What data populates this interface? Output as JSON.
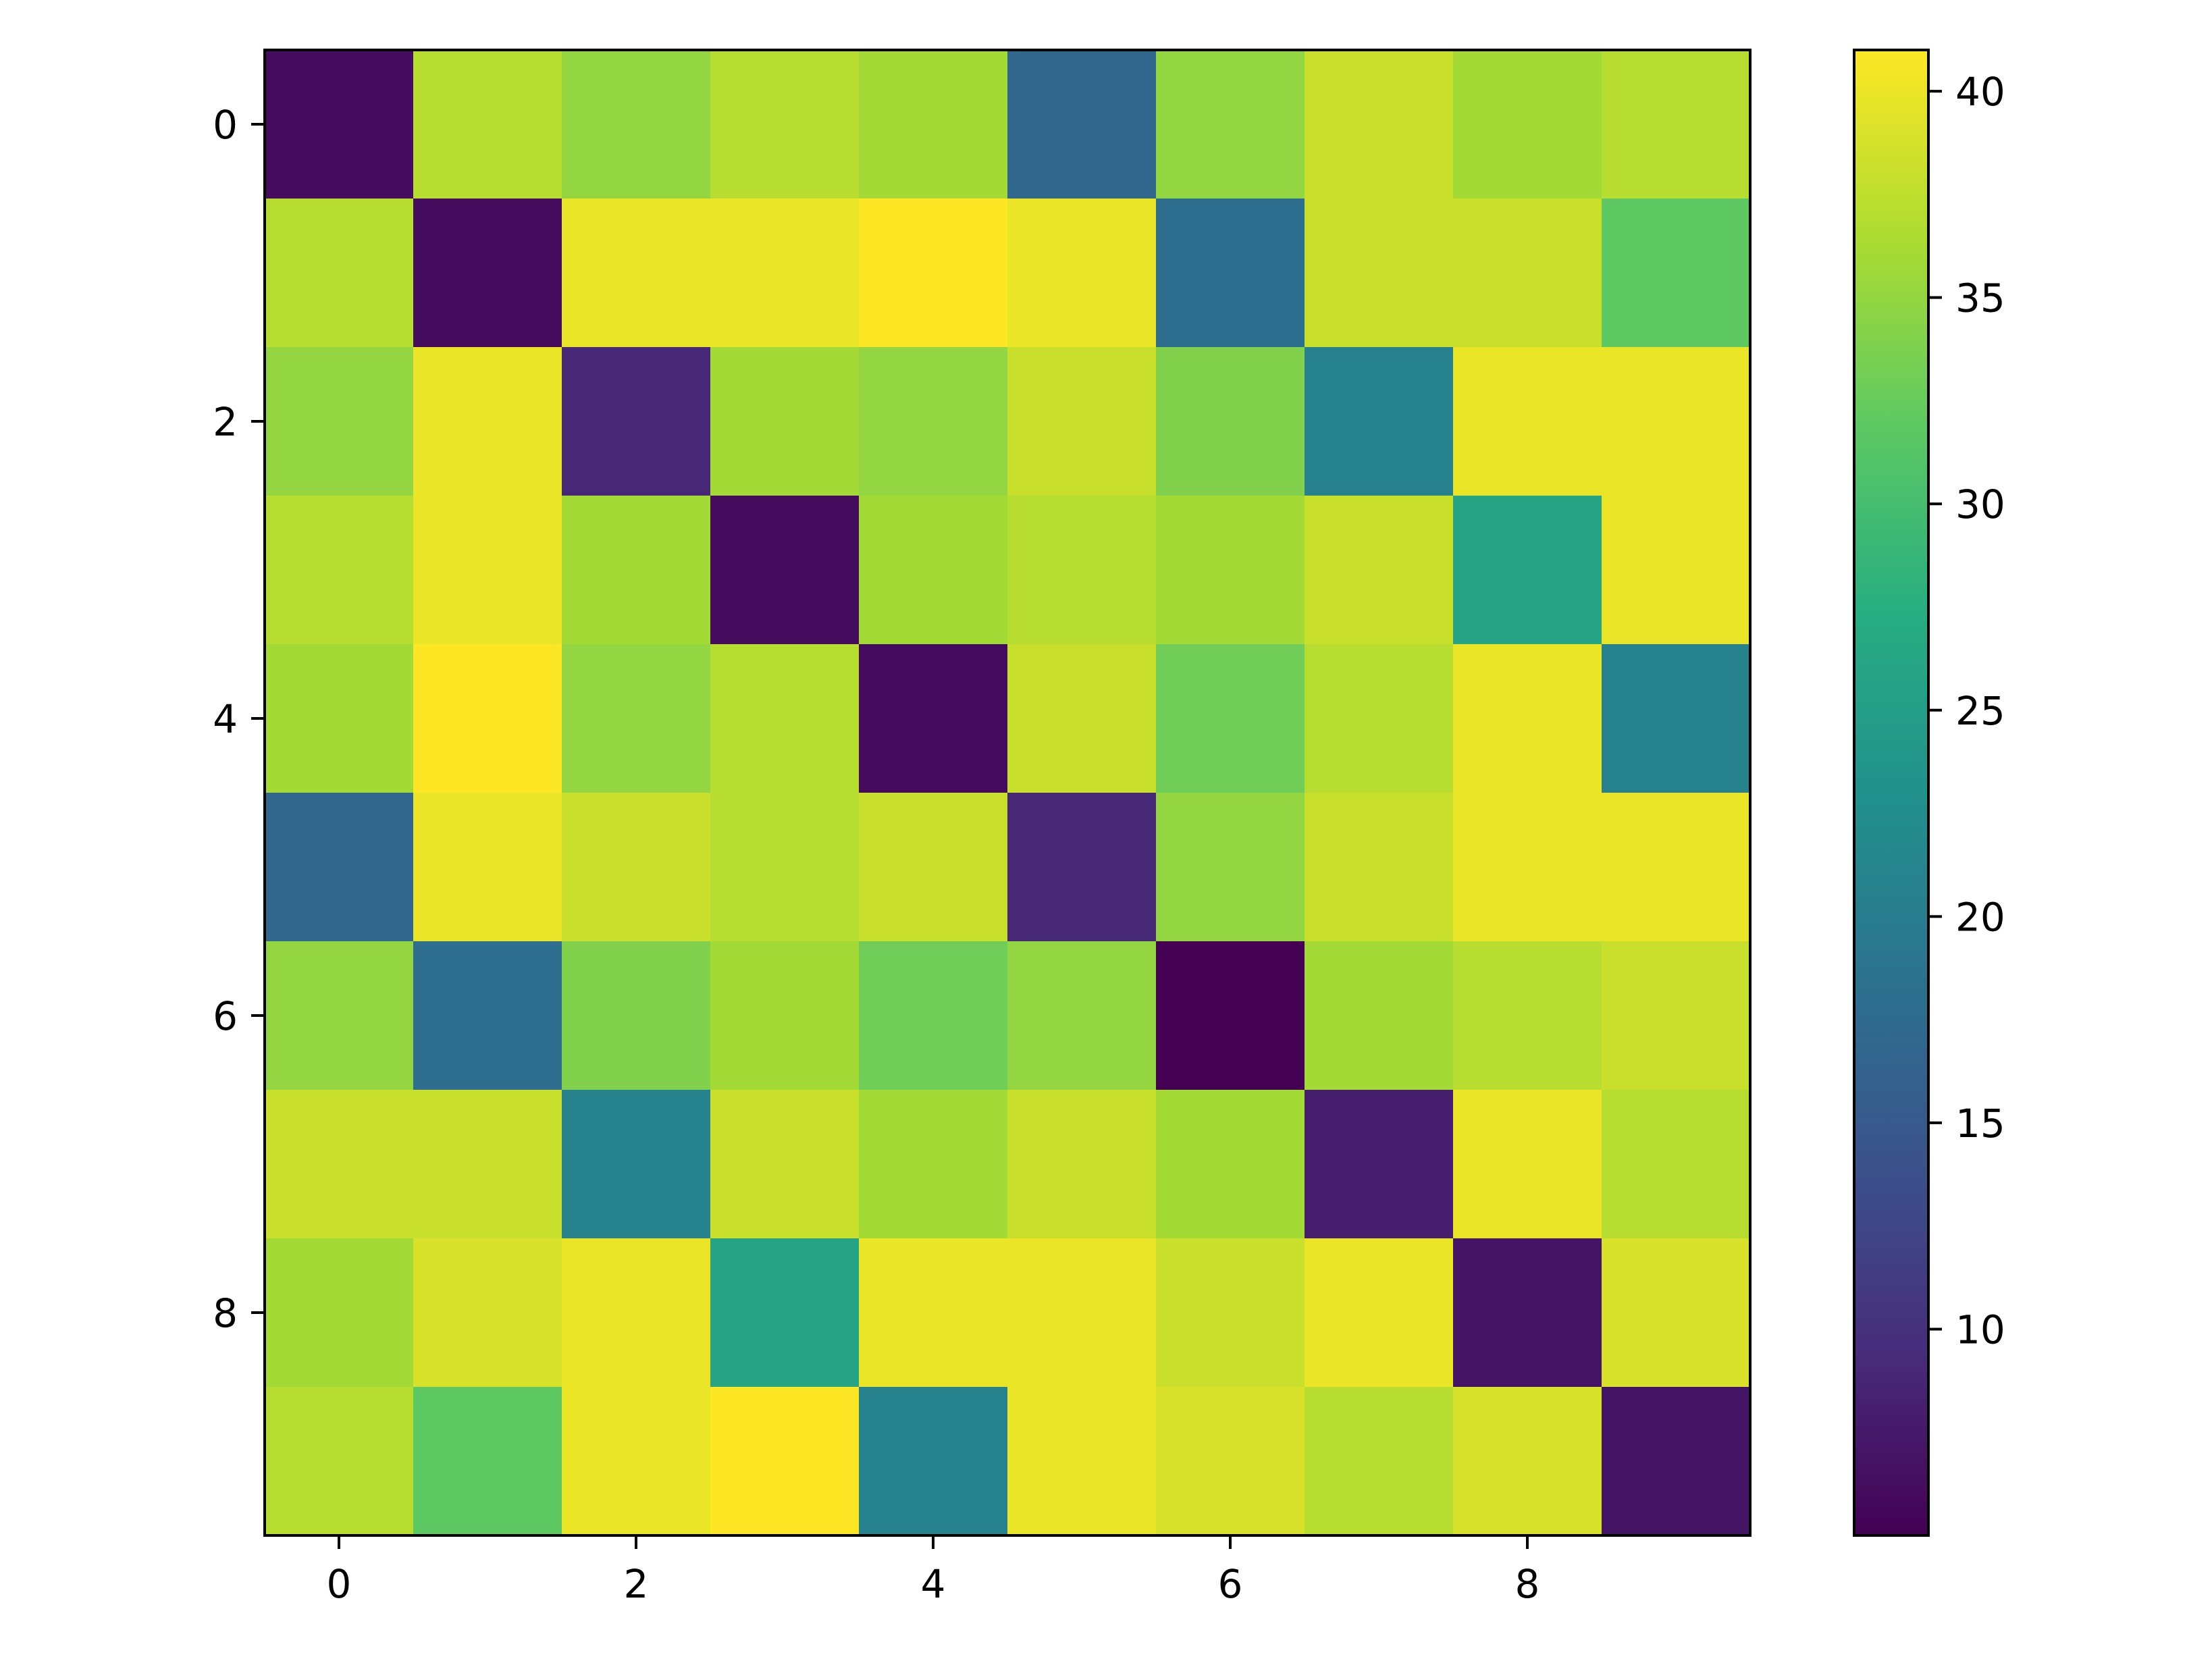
{
  "chart_data": {
    "type": "heatmap",
    "title": "",
    "xlabel": "",
    "ylabel": "",
    "x_ticks": [
      0,
      2,
      4,
      6,
      8
    ],
    "y_ticks": [
      0,
      2,
      4,
      6,
      8
    ],
    "colormap": "viridis",
    "vmin": 5,
    "vmax": 41,
    "colorbar_ticks": [
      10,
      15,
      20,
      25,
      30,
      35,
      40
    ],
    "colorbar_position": "right",
    "grid": false,
    "values": [
      [
        6,
        37,
        35,
        37,
        36,
        17,
        35,
        38,
        36,
        37
      ],
      [
        37,
        6,
        40,
        40,
        41,
        40,
        18,
        38,
        38,
        32
      ],
      [
        35,
        40,
        9,
        36,
        35,
        38,
        34,
        21,
        40,
        40
      ],
      [
        37,
        40,
        36,
        6,
        36,
        37,
        36,
        38,
        26,
        40
      ],
      [
        36,
        41,
        35,
        37,
        6,
        38,
        33,
        37,
        40,
        21
      ],
      [
        17,
        40,
        38,
        37,
        38,
        9,
        35,
        38,
        40,
        40
      ],
      [
        35,
        18,
        34,
        36,
        33,
        35,
        5,
        36,
        37,
        38
      ],
      [
        38,
        38,
        21,
        38,
        36,
        38,
        36,
        8,
        40,
        37
      ],
      [
        36,
        39,
        40,
        26,
        40,
        40,
        38,
        40,
        7,
        39
      ],
      [
        37,
        32,
        40,
        41,
        21,
        40,
        39,
        37,
        39,
        7
      ]
    ]
  }
}
